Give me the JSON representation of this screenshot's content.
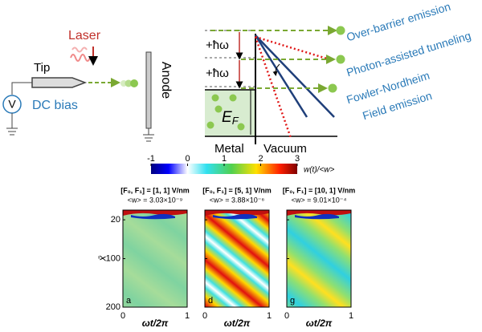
{
  "schematic": {
    "laser": "Laser",
    "tip": "Tip",
    "bias": "DC bias",
    "source": "V",
    "anode": "Anode"
  },
  "band_diagram": {
    "photon_1": "+ħω",
    "photon_2": "+ħω",
    "fermi": "E",
    "fermi_sub": "F",
    "metal": "Metal",
    "vacuum": "Vacuum",
    "emissions": [
      "Over-barrier emission",
      "Photon-assisted tunneling",
      "Fowler-Nordheim",
      "Field emission"
    ]
  },
  "colorbar": {
    "ticks": [
      -1,
      0,
      1,
      2,
      3
    ],
    "label": "w(t)/<w>"
  },
  "panels": {
    "ylabel": "x̄",
    "xlabel": "ωt/2π",
    "ylim": [
      0,
      200
    ],
    "yticks": [
      20,
      100,
      200
    ],
    "xlim": [
      0,
      1
    ],
    "xticks": [
      0,
      1
    ],
    "items": [
      {
        "header": "[F₀, F₁] = [1, 1] V/nm",
        "mean": "<w> = 3.03×10⁻⁹",
        "letter": "a"
      },
      {
        "header": "[F₀, F₁] = [5, 1] V/nm",
        "mean": "<w> = 3.88×10⁻⁶",
        "letter": "d"
      },
      {
        "header": "[F₀, F₁] = [10, 1] V/nm",
        "mean": "<w> = 9.01×10⁻⁴",
        "letter": "g"
      }
    ]
  }
}
